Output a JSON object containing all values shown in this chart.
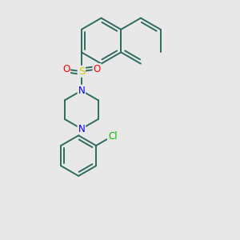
{
  "background_color": "#e8e8e8",
  "bond_color": "#2d6b5e",
  "bond_width": 1.4,
  "atom_colors": {
    "N": "#0000ff",
    "S": "#cccc00",
    "O": "#ff0000",
    "Cl": "#00bb00",
    "C": "#2d6b5e"
  },
  "font_size": 8.5,
  "figsize": [
    3.0,
    3.0
  ],
  "dpi": 100
}
